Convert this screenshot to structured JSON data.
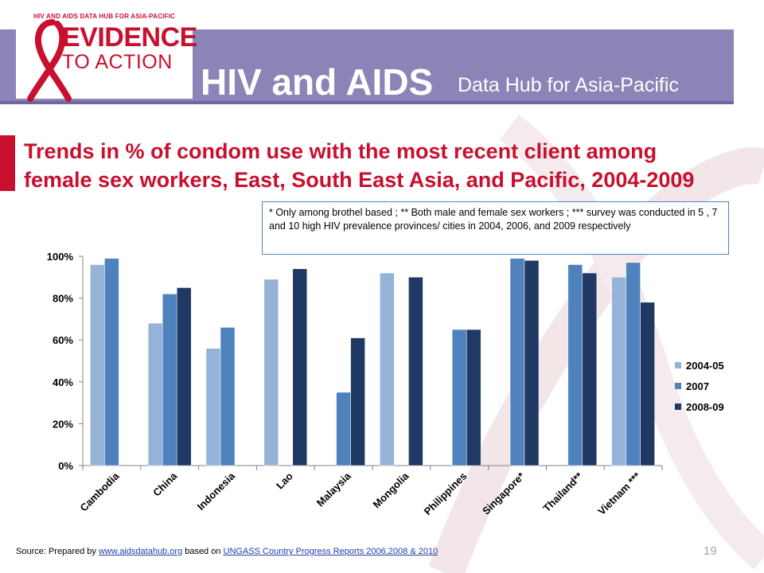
{
  "header": {
    "logo_top": "HIV AND AIDS DATA HUB FOR ASIA-PACIFIC",
    "logo_line1": "EVIDENCE",
    "logo_line2": "TO ACTION",
    "title": "HIV and AIDS",
    "subtitle": "Data Hub for Asia-Pacific"
  },
  "slide_title": "Trends in % of condom use with the most recent client among female sex workers, East, South East Asia, and Pacific, 2004-2009",
  "note": "*    Only among brothel based ; ** Both male and female sex workers ; *** survey was conducted in 5 , 7 and 10 high HIV prevalence  provinces/ cities in 2004, 2006, and 2009  respectively",
  "footer": {
    "source_prefix": "Source: Prepared by",
    "link1": "www.aidsdatahub.org",
    "source_mid": "based on",
    "link2": "UNGASS Country Progress Reports  2006,2008  & 2010",
    "page_number": "19"
  },
  "colors": {
    "brand_red": "#c8102e",
    "header_purple": "#8b84b6",
    "series_2004": "#95b3d7",
    "series_2007": "#4f81bd",
    "series_2008": "#1f3864"
  },
  "chart_data": {
    "type": "bar",
    "categories": [
      "Cambodia",
      "China",
      "Indonesia",
      "Lao",
      "Malaysia",
      "Mongolia",
      "Philippines",
      "Singapore*",
      "Thailand**",
      "Vietnam ***"
    ],
    "series": [
      {
        "name": "2004-05",
        "color": "#95b3d7",
        "values": [
          96,
          68,
          56,
          89,
          null,
          92,
          null,
          null,
          null,
          90
        ]
      },
      {
        "name": "2007",
        "color": "#4f81bd",
        "values": [
          99,
          82,
          66,
          null,
          35,
          null,
          65,
          99,
          96,
          97
        ]
      },
      {
        "name": "2008-09",
        "color": "#1f3864",
        "values": [
          null,
          85,
          null,
          94,
          61,
          90,
          65,
          98,
          92,
          78
        ]
      }
    ],
    "ylim": [
      0,
      100
    ],
    "yticks": [
      "0%",
      "20%",
      "40%",
      "60%",
      "80%",
      "100%"
    ],
    "legend_position": "right",
    "grid": false
  }
}
